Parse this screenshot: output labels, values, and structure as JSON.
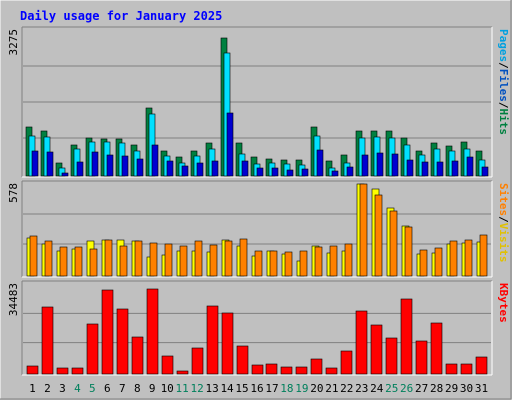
{
  "chart_data": [
    {
      "type": "bar",
      "title": "Daily usage for January 2025",
      "ylabel_parts": [
        "Pages",
        "/",
        "Files",
        "/",
        "Hits"
      ],
      "ymax_label": "3275",
      "ylim": [
        0,
        3275
      ],
      "categories": [
        "1",
        "2",
        "3",
        "4",
        "5",
        "6",
        "7",
        "8",
        "9",
        "10",
        "11",
        "12",
        "13",
        "14",
        "15",
        "16",
        "17",
        "18",
        "19",
        "20",
        "21",
        "22",
        "23",
        "24",
        "25",
        "26",
        "27",
        "28",
        "29",
        "30",
        "31"
      ],
      "series": [
        {
          "name": "Hits",
          "color": "#008040",
          "values": [
            1110,
            1000,
            300,
            700,
            860,
            840,
            840,
            700,
            1520,
            560,
            420,
            560,
            740,
            3100,
            740,
            420,
            390,
            360,
            360,
            1110,
            340,
            460,
            1010,
            1020,
            1020,
            850,
            560,
            740,
            680,
            760,
            560
          ]
        },
        {
          "name": "Files",
          "color": "#00e0ff",
          "values": [
            900,
            880,
            170,
            600,
            760,
            760,
            740,
            560,
            1400,
            440,
            300,
            450,
            600,
            2760,
            500,
            270,
            290,
            270,
            240,
            900,
            180,
            300,
            850,
            880,
            850,
            700,
            470,
            600,
            560,
            600,
            360
          ]
        },
        {
          "name": "Pages",
          "color": "#0000d0",
          "values": [
            560,
            540,
            60,
            320,
            540,
            480,
            450,
            380,
            700,
            340,
            220,
            290,
            340,
            1420,
            340,
            190,
            170,
            140,
            160,
            580,
            110,
            200,
            480,
            520,
            500,
            360,
            310,
            320,
            340,
            420,
            200
          ]
        }
      ]
    },
    {
      "type": "bar",
      "ylabel_parts": [
        "Sites",
        "/",
        "Visits"
      ],
      "ymax_label": "578",
      "ylim": [
        0,
        578
      ],
      "categories": [
        "1",
        "2",
        "3",
        "4",
        "5",
        "6",
        "7",
        "8",
        "9",
        "10",
        "11",
        "12",
        "13",
        "14",
        "15",
        "16",
        "17",
        "18",
        "19",
        "20",
        "21",
        "22",
        "23",
        "24",
        "25",
        "26",
        "27",
        "28",
        "29",
        "30",
        "31"
      ],
      "series": [
        {
          "name": "Visits",
          "color": "#ffff00",
          "values": [
            240,
            200,
            155,
            170,
            220,
            228,
            225,
            220,
            120,
            130,
            155,
            160,
            148,
            225,
            190,
            125,
            155,
            140,
            95,
            190,
            145,
            155,
            578,
            545,
            430,
            316,
            140,
            145,
            200,
            205,
            215
          ]
        },
        {
          "name": "Sites",
          "color": "#ff8000",
          "values": [
            250,
            220,
            180,
            185,
            170,
            225,
            190,
            220,
            210,
            200,
            190,
            220,
            195,
            220,
            235,
            160,
            155,
            150,
            160,
            185,
            186,
            200,
            578,
            510,
            410,
            310,
            165,
            175,
            220,
            225,
            255
          ]
        }
      ]
    },
    {
      "type": "bar",
      "ylabel_parts": [
        "KBytes"
      ],
      "ymax_label": "34483",
      "ylim": [
        0,
        34483
      ],
      "categories": [
        "1",
        "2",
        "3",
        "4",
        "5",
        "6",
        "7",
        "8",
        "9",
        "10",
        "11",
        "12",
        "13",
        "14",
        "15",
        "16",
        "17",
        "18",
        "19",
        "20",
        "21",
        "22",
        "23",
        "24",
        "25",
        "26",
        "27",
        "28",
        "29",
        "30",
        "31"
      ],
      "series": [
        {
          "name": "KBytes",
          "color": "#ff0000",
          "values": [
            3000,
            25500,
            2400,
            2200,
            19000,
            32000,
            25000,
            14000,
            32700,
            6900,
            1200,
            10000,
            26000,
            23200,
            10700,
            3300,
            3800,
            2500,
            2700,
            5800,
            2200,
            8800,
            24300,
            18700,
            13700,
            28900,
            12700,
            19700,
            3700,
            4000,
            6500
          ]
        }
      ]
    }
  ],
  "x_axis": {
    "weekend_days": [
      "4",
      "5",
      "11",
      "12",
      "18",
      "19",
      "25",
      "26"
    ],
    "weekday_color": "#000000",
    "weekend_color": "#00805c"
  },
  "colors": {
    "background": "#c0c0c0",
    "plot_background": "#c0c0c0",
    "gridline": "#808080",
    "title": "#0000ff",
    "pages_label": "#00a0e0",
    "files_label": "#0050c0",
    "hits_label": "#008040",
    "sites_label": "#ff8000",
    "visits_label": "#e0c000",
    "kbytes_label": "#ff0000",
    "separator": "#000000"
  }
}
